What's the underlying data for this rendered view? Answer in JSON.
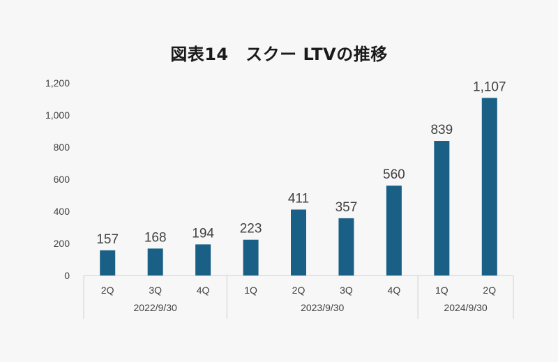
{
  "chart_data": {
    "type": "bar",
    "title": "図表14　スクー LTVの推移",
    "categories": [
      "2Q",
      "3Q",
      "4Q",
      "1Q",
      "2Q",
      "3Q",
      "4Q",
      "1Q",
      "2Q"
    ],
    "groups": [
      {
        "label": "2022/9/30",
        "count": 3
      },
      {
        "label": "2023/9/30",
        "count": 4
      },
      {
        "label": "2024/9/30",
        "count": 2
      }
    ],
    "values": [
      157,
      168,
      194,
      223,
      411,
      357,
      560,
      839,
      1107
    ],
    "data_labels": [
      "157",
      "168",
      "194",
      "223",
      "411",
      "357",
      "560",
      "839",
      "1,107"
    ],
    "yticks": [
      0,
      200,
      400,
      600,
      800,
      1000,
      1200
    ],
    "ytick_labels": [
      "0",
      "200",
      "400",
      "600",
      "800",
      "1,000",
      "1,200"
    ],
    "ylim": [
      0,
      1200
    ],
    "xlabel": "",
    "ylabel": "",
    "bar_color": "#1a5f86",
    "grid": false,
    "legend": "none"
  }
}
